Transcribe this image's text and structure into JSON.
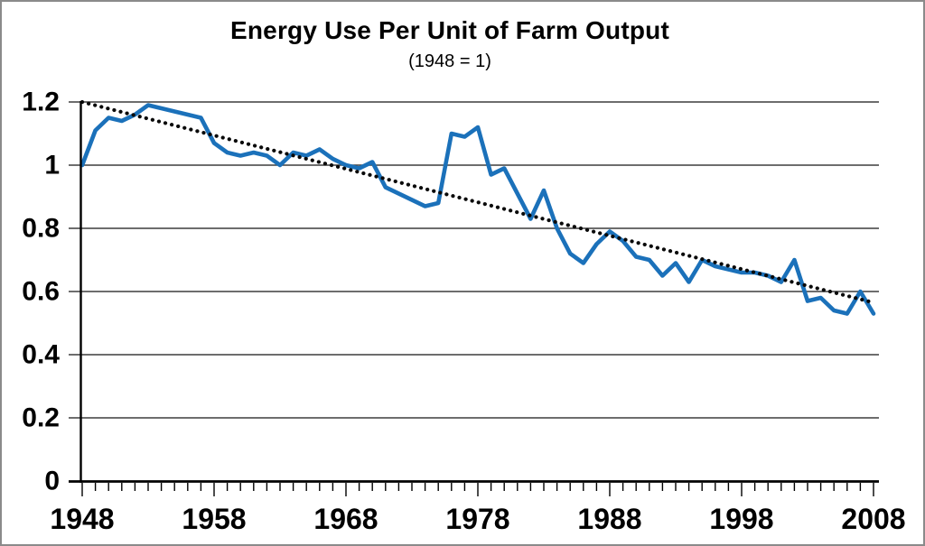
{
  "frame": {
    "background": "#ffffff",
    "border_color": "#8a8a8a"
  },
  "chart_data": {
    "type": "line",
    "title": "Energy Use Per Unit of Farm Output",
    "subtitle": "(1948 = 1)",
    "xlabel": "",
    "ylabel": "",
    "grid": "horizontal",
    "legend": "none",
    "x_axis": {
      "min": 1948,
      "max": 2008,
      "minor_tick_interval": 1,
      "labeled_tick_years": [
        1948,
        1958,
        1968,
        1978,
        1988,
        1998,
        2008
      ],
      "labeled_ticks": [
        "1948",
        "1958",
        "1968",
        "1978",
        "1988",
        "1998",
        "2008"
      ]
    },
    "y_axis": {
      "min": 0,
      "max": 1.2,
      "ticks": [
        0,
        0.2,
        0.4,
        0.6,
        0.8,
        1,
        1.2
      ],
      "tick_labels": [
        "0",
        "0.2",
        "0.4",
        "0.6",
        "0.8",
        "1",
        "1.2"
      ]
    },
    "series": [
      {
        "name": "energy-use-per-unit-of-farm-output",
        "color": "#1B71BA",
        "style": "solid",
        "years": [
          1948,
          1949,
          1950,
          1951,
          1952,
          1953,
          1954,
          1955,
          1956,
          1957,
          1958,
          1959,
          1960,
          1961,
          1962,
          1963,
          1964,
          1965,
          1966,
          1967,
          1968,
          1969,
          1970,
          1971,
          1972,
          1973,
          1974,
          1975,
          1976,
          1977,
          1978,
          1979,
          1980,
          1981,
          1982,
          1983,
          1984,
          1985,
          1986,
          1987,
          1988,
          1989,
          1990,
          1991,
          1992,
          1993,
          1994,
          1995,
          1996,
          1997,
          1998,
          1999,
          2000,
          2001,
          2002,
          2003,
          2004,
          2005,
          2006,
          2007,
          2008
        ],
        "values": [
          1.0,
          1.11,
          1.15,
          1.14,
          1.16,
          1.19,
          1.18,
          1.17,
          1.16,
          1.15,
          1.07,
          1.04,
          1.03,
          1.04,
          1.03,
          1.0,
          1.04,
          1.03,
          1.05,
          1.02,
          1.0,
          0.99,
          1.01,
          0.93,
          0.91,
          0.89,
          0.87,
          0.88,
          1.1,
          1.09,
          1.12,
          0.97,
          0.99,
          0.91,
          0.83,
          0.92,
          0.8,
          0.72,
          0.69,
          0.75,
          0.79,
          0.76,
          0.71,
          0.7,
          0.65,
          0.69,
          0.63,
          0.7,
          0.68,
          0.67,
          0.66,
          0.66,
          0.65,
          0.63,
          0.7,
          0.57,
          0.58,
          0.54,
          0.53,
          0.6,
          0.53
        ]
      },
      {
        "name": "linear-trend",
        "color": "#0a0a0a",
        "style": "dotted",
        "years": [
          1948,
          2008
        ],
        "values": [
          1.2,
          0.565
        ]
      }
    ]
  }
}
